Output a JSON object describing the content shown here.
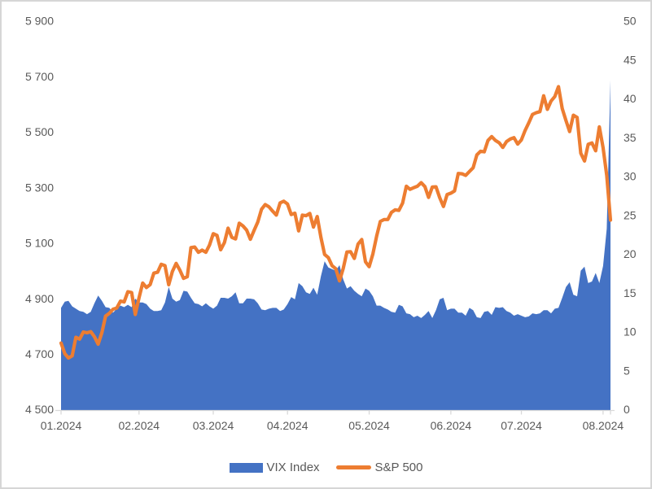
{
  "legend": {
    "vix_label": "VIX Index",
    "sp500_label": "S&P 500"
  },
  "chart_data": {
    "type": "area",
    "subtype": "combo-area-line-dual-axis",
    "title": "",
    "xlabel": "",
    "ylabel": "",
    "grid": "off",
    "legend_position": "bottom-center",
    "x_tick_labels": [
      "01.2024",
      "02.2024",
      "03.2024",
      "04.2024",
      "05.2024",
      "06.2024",
      "07.2024",
      "08.2024"
    ],
    "months": [
      {
        "label": "01.2024",
        "points": 21
      },
      {
        "label": "02.2024",
        "points": 20
      },
      {
        "label": "03.2024",
        "points": 20
      },
      {
        "label": "04.2024",
        "points": 22
      },
      {
        "label": "05.2024",
        "points": 22
      },
      {
        "label": "06.2024",
        "points": 19
      },
      {
        "label": "07.2024",
        "points": 22
      },
      {
        "label": "08.2024",
        "points": 3
      }
    ],
    "left_axis": {
      "min": 4500,
      "max": 5900,
      "step": 200,
      "tick_labels": [
        "4 500",
        "4 700",
        "4 900",
        "5 100",
        "5 300",
        "5 500",
        "5 700",
        "5 900"
      ],
      "applies_to": "S&P 500"
    },
    "right_axis": {
      "min": 0,
      "max": 50,
      "step": 5,
      "tick_labels": [
        "0",
        "5",
        "10",
        "15",
        "20",
        "25",
        "30",
        "35",
        "40",
        "45",
        "50"
      ],
      "applies_to": "VIX Index"
    },
    "colors": {
      "vix_area": "#4472C4",
      "sp500_line": "#ED7D31",
      "axis_line": "#d9d9d9",
      "text": "#595959"
    },
    "series": [
      {
        "name": "VIX Index",
        "type": "area",
        "axis": "right",
        "color": "#4472C4",
        "values": [
          13.2,
          14.0,
          14.1,
          13.4,
          13.1,
          12.8,
          12.7,
          12.4,
          12.7,
          13.8,
          14.8,
          14.1,
          13.3,
          13.2,
          12.6,
          13.1,
          13.5,
          13.3,
          13.6,
          13.3,
          14.4,
          13.9,
          13.9,
          13.7,
          13.1,
          12.8,
          12.8,
          12.9,
          13.9,
          15.9,
          14.4,
          14.0,
          14.2,
          15.4,
          15.3,
          14.5,
          13.8,
          13.7,
          13.4,
          13.8,
          13.4,
          13.1,
          13.5,
          14.5,
          14.5,
          14.4,
          14.7,
          15.2,
          13.8,
          13.8,
          14.4,
          14.4,
          14.3,
          13.8,
          13.0,
          12.9,
          13.1,
          13.2,
          13.2,
          12.8,
          13.0,
          13.7,
          14.6,
          14.3,
          16.4,
          16.0,
          15.2,
          15.0,
          15.8,
          14.9,
          17.3,
          19.2,
          18.4,
          18.2,
          18.0,
          18.7,
          16.9,
          15.7,
          16.0,
          15.4,
          15.0,
          14.7,
          15.7,
          15.4,
          14.7,
          13.5,
          13.5,
          13.2,
          13.0,
          12.7,
          12.6,
          13.6,
          13.4,
          12.5,
          12.4,
          12.0,
          12.2,
          11.9,
          12.3,
          12.8,
          11.9,
          12.9,
          14.3,
          14.5,
          12.9,
          13.1,
          13.1,
          12.6,
          12.6,
          12.2,
          13.2,
          12.9,
          12.0,
          11.9,
          12.7,
          12.8,
          12.3,
          13.3,
          13.2,
          13.3,
          12.8,
          12.6,
          12.2,
          12.4,
          12.2,
          12.0,
          12.1,
          12.5,
          12.4,
          12.5,
          12.9,
          12.9,
          12.5,
          13.1,
          13.2,
          14.5,
          15.9,
          16.5,
          14.9,
          14.7,
          18.0,
          18.5,
          16.4,
          16.6,
          17.7,
          16.4,
          18.6,
          23.4,
          42.5
        ]
      },
      {
        "name": "S&P 500",
        "type": "line",
        "axis": "left",
        "color": "#ED7D31",
        "values": [
          4743,
          4705,
          4689,
          4697,
          4764,
          4757,
          4783,
          4780,
          4784,
          4766,
          4739,
          4781,
          4840,
          4850,
          4865,
          4869,
          4894,
          4891,
          4928,
          4925,
          4846,
          4906,
          4959,
          4943,
          4954,
          4995,
          4998,
          5027,
          5022,
          4953,
          5001,
          5030,
          5006,
          4976,
          4982,
          5087,
          5089,
          5070,
          5078,
          5070,
          5096,
          5137,
          5131,
          5079,
          5105,
          5157,
          5124,
          5118,
          5175,
          5165,
          5150,
          5117,
          5149,
          5179,
          5225,
          5242,
          5234,
          5218,
          5204,
          5248,
          5254,
          5244,
          5206,
          5211,
          5147,
          5204,
          5202,
          5210,
          5161,
          5199,
          5123,
          5062,
          5051,
          5022,
          5011,
          4967,
          5011,
          5071,
          5072,
          5048,
          5100,
          5116,
          5036,
          5018,
          5064,
          5128,
          5181,
          5188,
          5188,
          5214,
          5223,
          5221,
          5247,
          5308,
          5297,
          5303,
          5308,
          5321,
          5307,
          5268,
          5305,
          5306,
          5267,
          5235,
          5278,
          5283,
          5291,
          5354,
          5353,
          5347,
          5361,
          5375,
          5421,
          5434,
          5432,
          5473,
          5487,
          5473,
          5465,
          5448,
          5469,
          5478,
          5483,
          5460,
          5475,
          5509,
          5537,
          5567,
          5573,
          5577,
          5634,
          5585,
          5615,
          5631,
          5667,
          5588,
          5545,
          5505,
          5564,
          5556,
          5427,
          5399,
          5459,
          5464,
          5436,
          5522,
          5447,
          5347,
          5186
        ]
      }
    ]
  }
}
